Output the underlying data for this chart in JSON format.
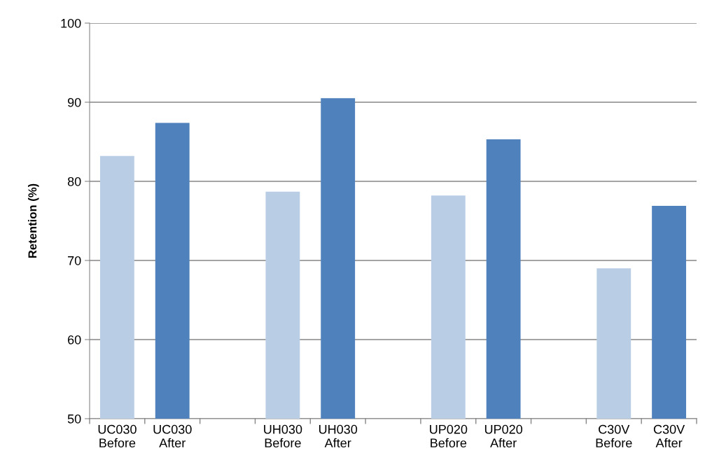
{
  "chart_data": {
    "type": "bar",
    "ylabel": "Retention (%)",
    "categories": [
      "UC030\nBefore",
      "UC030\nAfter",
      null,
      "UH030\nBefore",
      "UH030\nAfter",
      null,
      "UP020\nBefore",
      "UP020\nAfter",
      null,
      "C30V\nBefore",
      "C30V\nAfter"
    ],
    "values": [
      83.2,
      87.4,
      null,
      78.7,
      90.5,
      null,
      78.2,
      85.3,
      null,
      69.0,
      76.9
    ],
    "colors": [
      "#b9cde5",
      "#4f81bd",
      null,
      "#b9cde5",
      "#4f81bd",
      null,
      "#b9cde5",
      "#4f81bd",
      null,
      "#b9cde5",
      "#4f81bd"
    ],
    "ylim": [
      50,
      100
    ],
    "yticks": [
      50,
      60,
      70,
      80,
      90,
      100
    ],
    "grid": "y"
  }
}
